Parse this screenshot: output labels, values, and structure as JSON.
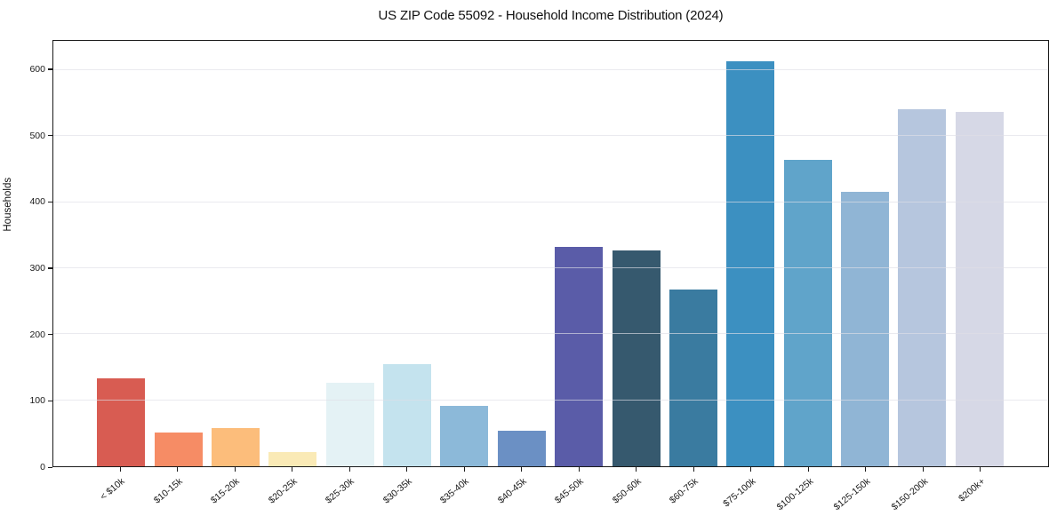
{
  "chart_data": {
    "type": "bar",
    "title": "US ZIP Code 55092 - Household Income Distribution (2024)",
    "xlabel": "",
    "ylabel": "Households",
    "categories": [
      "< $10k",
      "$10-15k",
      "$15-20k",
      "$20-25k",
      "$25-30k",
      "$30-35k",
      "$35-40k",
      "$40-45k",
      "$45-50k",
      "$50-60k",
      "$60-75k",
      "$75-100k",
      "$100-125k",
      "$125-150k",
      "$150-200k",
      "$200k+"
    ],
    "values": [
      133,
      51,
      58,
      22,
      127,
      154,
      91,
      54,
      332,
      327,
      268,
      613,
      464,
      416,
      540,
      537
    ],
    "bar_colors": [
      "#d85c52",
      "#f68c65",
      "#fcbd7b",
      "#faeab6",
      "#e4f2f5",
      "#c4e3ee",
      "#8cb9d9",
      "#6b90c4",
      "#5a5ca8",
      "#36596e",
      "#3a7ba0",
      "#3c90c1",
      "#60a4ca",
      "#90b5d5",
      "#b6c6de",
      "#d6d8e6"
    ],
    "yticks": [
      0,
      100,
      200,
      300,
      400,
      500,
      600
    ],
    "ylim": [
      0,
      644
    ],
    "grid": "horizontal",
    "gridline_color": "#dedee6",
    "legend": "none",
    "background_color": "#ffffff",
    "spine_color": "#1b1b1b"
  }
}
